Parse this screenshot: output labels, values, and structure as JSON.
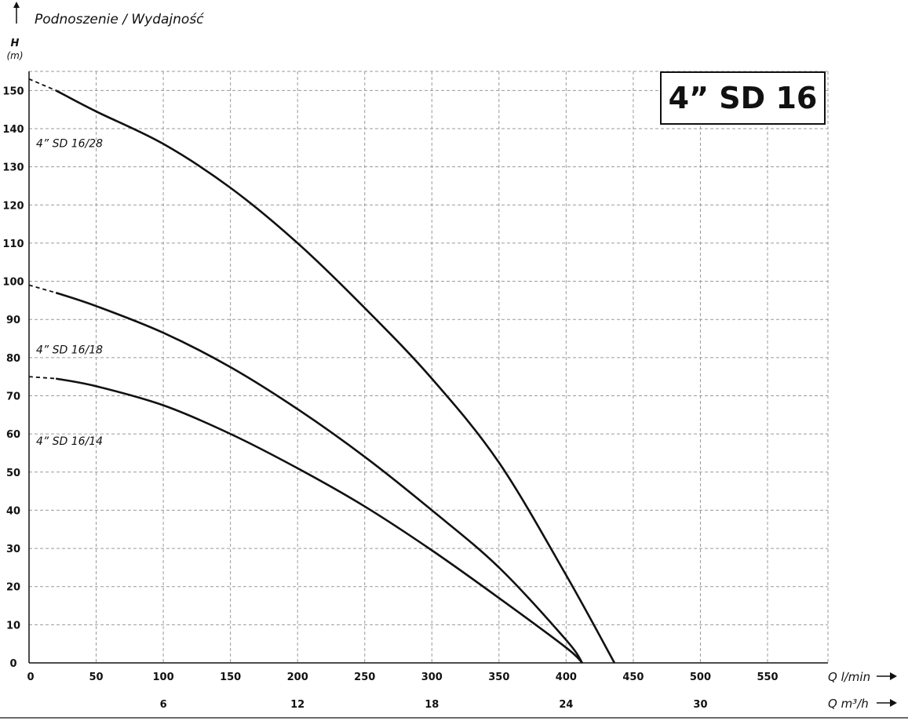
{
  "chart_data": {
    "type": "line",
    "title": "Podnoszenie / Wydajność",
    "model_label": "4” SD 16",
    "ylabel": "H",
    "yunit": "(m)",
    "xlabel": "Q l/min",
    "x2label": "Q m³/h",
    "xlim": [
      0,
      595
    ],
    "ylim": [
      0,
      155
    ],
    "x_ticks": [
      0,
      50,
      100,
      150,
      200,
      250,
      300,
      350,
      400,
      450,
      500,
      550
    ],
    "y_ticks": [
      0,
      10,
      20,
      30,
      40,
      50,
      60,
      70,
      80,
      90,
      100,
      110,
      120,
      130,
      140,
      150
    ],
    "x2_ticks": [
      {
        "value": 6,
        "at_lmin": 100
      },
      {
        "value": 12,
        "at_lmin": 200
      },
      {
        "value": 18,
        "at_lmin": 300
      },
      {
        "value": 24,
        "at_lmin": 400
      },
      {
        "value": 30,
        "at_lmin": 500
      }
    ],
    "grid": true,
    "series": [
      {
        "name": "4” SD 16/28",
        "dashed_until": 20,
        "points": [
          [
            0,
            153
          ],
          [
            20,
            150
          ],
          [
            50,
            144.5
          ],
          [
            100,
            136
          ],
          [
            150,
            124.5
          ],
          [
            200,
            110
          ],
          [
            250,
            93
          ],
          [
            300,
            74.5
          ],
          [
            350,
            52.5
          ],
          [
            400,
            23
          ],
          [
            436,
            0
          ]
        ]
      },
      {
        "name": "4” SD 16/18",
        "dashed_until": 20,
        "points": [
          [
            0,
            99
          ],
          [
            20,
            97
          ],
          [
            50,
            93.5
          ],
          [
            100,
            86.5
          ],
          [
            150,
            77.5
          ],
          [
            200,
            66.5
          ],
          [
            250,
            54
          ],
          [
            300,
            40
          ],
          [
            350,
            25
          ],
          [
            400,
            6
          ],
          [
            412,
            0
          ]
        ]
      },
      {
        "name": "4” SD 16/14",
        "dashed_until": 20,
        "points": [
          [
            0,
            75
          ],
          [
            20,
            74.5
          ],
          [
            50,
            72.5
          ],
          [
            100,
            67.5
          ],
          [
            150,
            60
          ],
          [
            200,
            51
          ],
          [
            250,
            41
          ],
          [
            300,
            29.5
          ],
          [
            350,
            17
          ],
          [
            400,
            4
          ],
          [
            412,
            0
          ]
        ]
      }
    ]
  }
}
